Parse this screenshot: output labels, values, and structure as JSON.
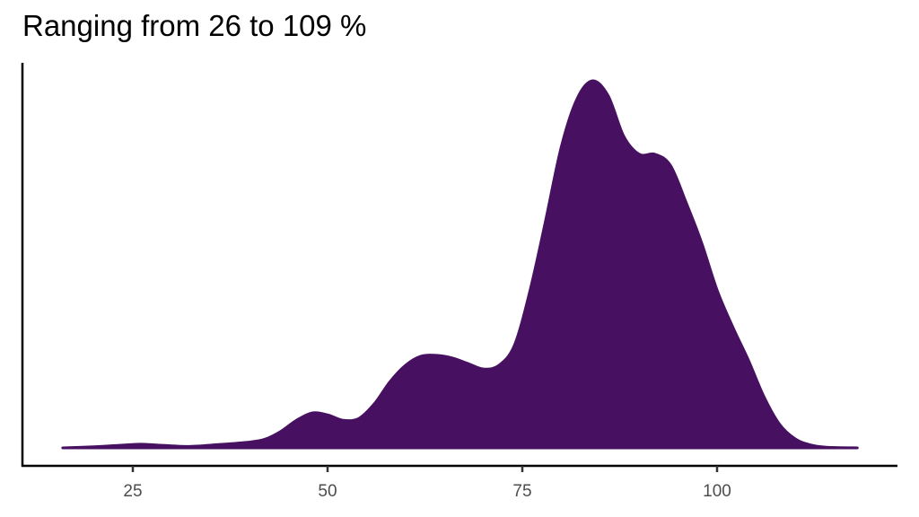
{
  "chart_data": {
    "type": "area",
    "subtype": "density",
    "title": "Ranging from 26 to 109 %",
    "xlabel": "",
    "ylabel": "",
    "xlim": [
      11,
      123
    ],
    "x_ticks": [
      25,
      50,
      75,
      100
    ],
    "y_ticks": [],
    "grid": false,
    "legend": null,
    "fill_color": "#471061",
    "series": [
      {
        "name": "density",
        "x": [
          16,
          20,
          24,
          26,
          28,
          32,
          36,
          40,
          42,
          44,
          46,
          48,
          50,
          52,
          54,
          56,
          58,
          60,
          62,
          64,
          66,
          68,
          70,
          72,
          74,
          76,
          78,
          80,
          82,
          84,
          86,
          88,
          90,
          92,
          94,
          96,
          98,
          100,
          102,
          104,
          106,
          108,
          110,
          112,
          114,
          118
        ],
        "y": [
          0.0,
          0.003,
          0.008,
          0.01,
          0.008,
          0.004,
          0.009,
          0.016,
          0.024,
          0.045,
          0.075,
          0.095,
          0.09,
          0.075,
          0.08,
          0.12,
          0.18,
          0.225,
          0.25,
          0.252,
          0.245,
          0.23,
          0.215,
          0.225,
          0.28,
          0.43,
          0.62,
          0.82,
          0.95,
          1.0,
          0.96,
          0.85,
          0.8,
          0.8,
          0.77,
          0.67,
          0.56,
          0.43,
          0.33,
          0.24,
          0.14,
          0.065,
          0.025,
          0.008,
          0.002,
          0.0
        ]
      }
    ],
    "ylim_normalized": [
      0,
      1.0
    ],
    "annotations": []
  },
  "axes": {
    "x_tick_labels": [
      "25",
      "50",
      "75",
      "100"
    ]
  }
}
